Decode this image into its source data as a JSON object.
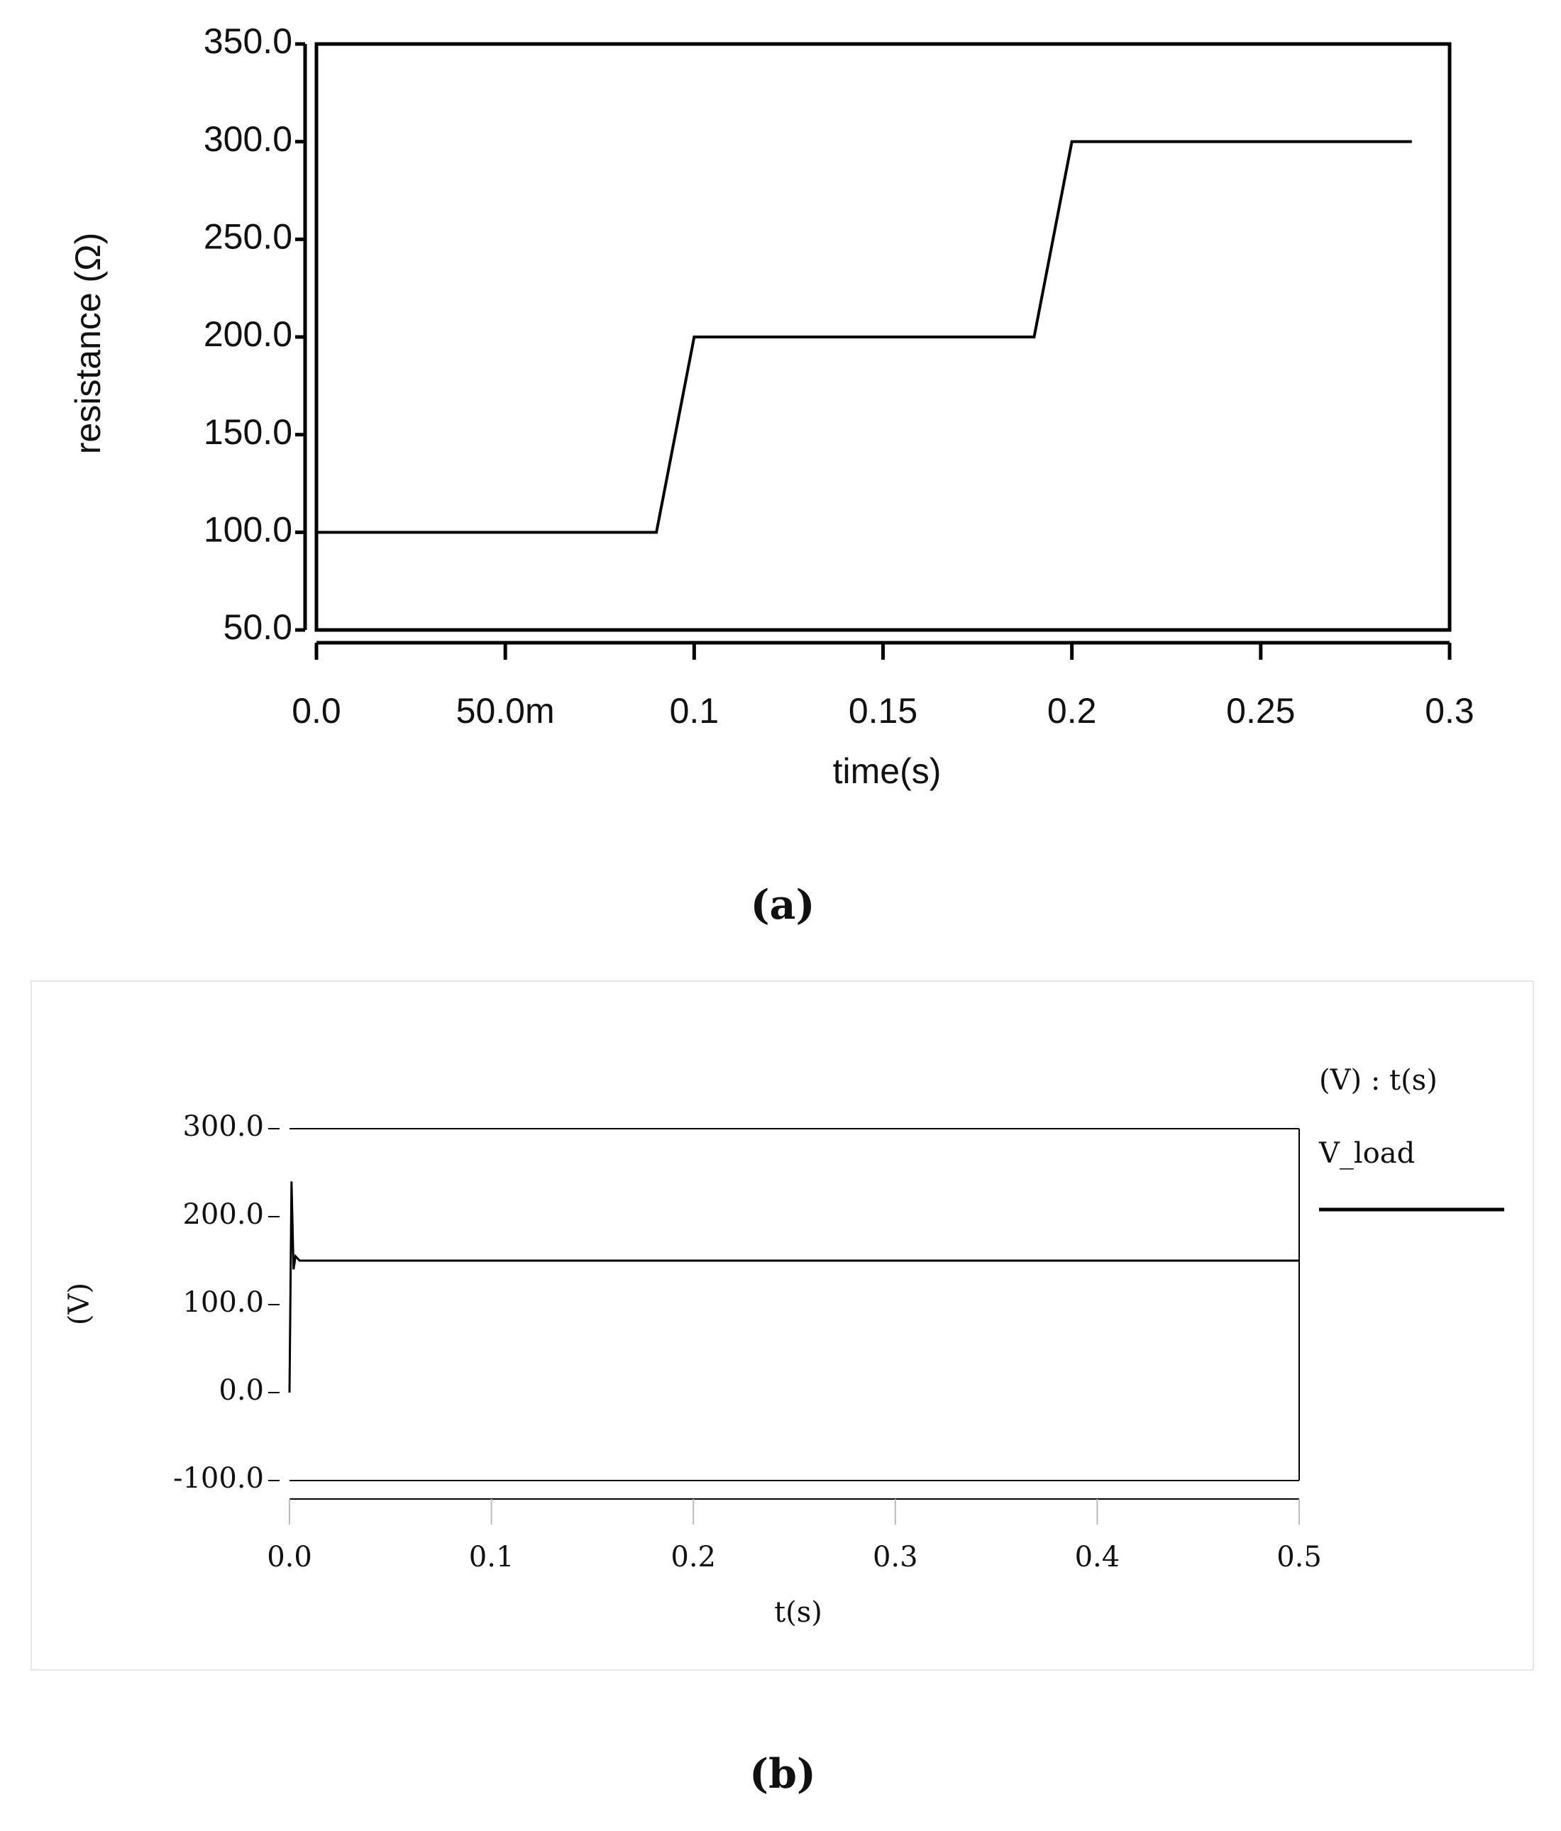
{
  "chart_data": [
    {
      "type": "line",
      "caption": "(a)",
      "xlabel": "time(s)",
      "ylabel": "resistance (Ω)",
      "x": [
        0,
        0.09,
        0.1,
        0.19,
        0.2,
        0.29
      ],
      "series": [
        {
          "name": null,
          "color": "#000000",
          "values": [
            100,
            100,
            200,
            200,
            300,
            300
          ]
        }
      ],
      "xlim": [
        0,
        0.3
      ],
      "xticks": [
        {
          "value": 0,
          "label": "0.0"
        },
        {
          "value": 0.05,
          "label": "50.0m"
        },
        0.1,
        0.15,
        0.2,
        0.25,
        0.3
      ],
      "ylim": [
        50,
        350
      ],
      "yticks": [
        {
          "value": 50,
          "label": "50.0"
        },
        {
          "value": 100,
          "label": "100.0"
        },
        {
          "value": 150,
          "label": "150.0"
        },
        {
          "value": 200,
          "label": "200.0"
        },
        {
          "value": 250,
          "label": "250.0"
        },
        {
          "value": 300,
          "label": "300.0"
        },
        {
          "value": 350,
          "label": "350.0"
        }
      ]
    },
    {
      "type": "line",
      "caption": "(b)",
      "xlabel": "t(s)",
      "ylabel": "(V)",
      "legend_title": "(V) : t(s)",
      "x": [
        0,
        0.001,
        0.002,
        0.003,
        0.005,
        0.5
      ],
      "series": [
        {
          "name": "V_load",
          "color": "#000000",
          "values": [
            0,
            240,
            140,
            155,
            150,
            150
          ]
        }
      ],
      "xlim": [
        0,
        0.5
      ],
      "xticks": [
        {
          "value": 0,
          "label": "0.0"
        },
        0.1,
        0.2,
        0.3,
        0.4,
        0.5
      ],
      "ylim": [
        -100,
        300
      ],
      "yticks": [
        {
          "value": -100,
          "label": "-100.0"
        },
        {
          "value": 0,
          "label": "0.0"
        },
        {
          "value": 100,
          "label": "100.0"
        },
        {
          "value": 200,
          "label": "200.0"
        },
        {
          "value": 300,
          "label": "300.0"
        }
      ]
    }
  ]
}
